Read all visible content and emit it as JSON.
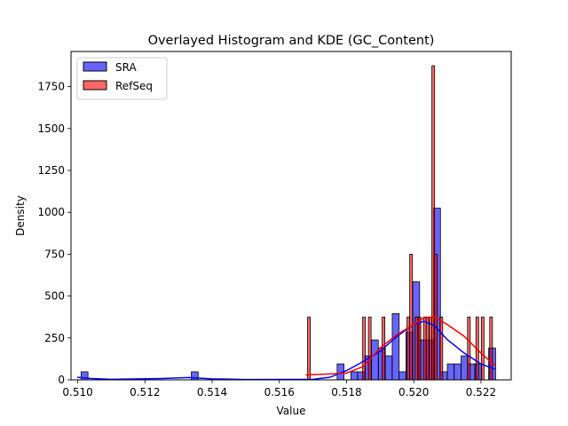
{
  "chart_data": {
    "type": "histogram",
    "title": "Overlayed Histogram and KDE (GC_Content)",
    "xlabel": "Value",
    "ylabel": "Density",
    "xlim": [
      0.5098,
      0.5229
    ],
    "ylim": [
      0,
      1960
    ],
    "xticks": [
      0.51,
      0.512,
      0.514,
      0.516,
      0.518,
      0.52,
      0.522
    ],
    "yticks": [
      0,
      250,
      500,
      750,
      1000,
      1250,
      1500,
      1750
    ],
    "legend_position": "top-left",
    "series": [
      {
        "name": "SRA",
        "color": "#0000ff",
        "fill_alpha": 0.6,
        "bin_width": 0.000205,
        "bins": [
          [
            0.5101,
            48
          ],
          [
            0.51338,
            48
          ],
          [
            0.51772,
            95
          ],
          [
            0.51813,
            48
          ],
          [
            0.51833,
            48
          ],
          [
            0.51854,
            143
          ],
          [
            0.51874,
            238
          ],
          [
            0.51895,
            190
          ],
          [
            0.51915,
            143
          ],
          [
            0.51936,
            395
          ],
          [
            0.51956,
            48
          ],
          [
            0.51977,
            285
          ],
          [
            0.51997,
            585
          ],
          [
            0.52018,
            238
          ],
          [
            0.52038,
            238
          ],
          [
            0.52059,
            1025
          ],
          [
            0.52079,
            48
          ],
          [
            0.521,
            95
          ],
          [
            0.5212,
            95
          ],
          [
            0.52141,
            143
          ],
          [
            0.52161,
            95
          ],
          [
            0.52182,
            95
          ],
          [
            0.52223,
            190
          ]
        ],
        "kde": [
          [
            0.51,
            15
          ],
          [
            0.5104,
            8
          ],
          [
            0.511,
            3
          ],
          [
            0.5125,
            8
          ],
          [
            0.5133,
            14
          ],
          [
            0.514,
            6
          ],
          [
            0.515,
            2
          ],
          [
            0.517,
            3
          ],
          [
            0.5175,
            15
          ],
          [
            0.518,
            55
          ],
          [
            0.5185,
            110
          ],
          [
            0.519,
            170
          ],
          [
            0.5195,
            260
          ],
          [
            0.52,
            330
          ],
          [
            0.5203,
            350
          ],
          [
            0.5206,
            325
          ],
          [
            0.521,
            240
          ],
          [
            0.5215,
            160
          ],
          [
            0.522,
            95
          ],
          [
            0.5224,
            65
          ]
        ]
      },
      {
        "name": "RefSeq",
        "color": "#ff0000",
        "fill_alpha": 0.6,
        "bin_width": 8.1e-05,
        "bins": [
          [
            0.51684,
            375
          ],
          [
            0.51848,
            375
          ],
          [
            0.51865,
            375
          ],
          [
            0.51906,
            375
          ],
          [
            0.5198,
            375
          ],
          [
            0.51988,
            750
          ],
          [
            0.52004,
            375
          ],
          [
            0.52013,
            375
          ],
          [
            0.52029,
            375
          ],
          [
            0.52037,
            375
          ],
          [
            0.52046,
            375
          ],
          [
            0.52054,
            1875
          ],
          [
            0.52062,
            750
          ],
          [
            0.52078,
            375
          ],
          [
            0.5216,
            375
          ],
          [
            0.52185,
            375
          ],
          [
            0.52201,
            375
          ],
          [
            0.52226,
            375
          ]
        ],
        "kde": [
          [
            0.5168,
            30
          ],
          [
            0.5175,
            35
          ],
          [
            0.518,
            40
          ],
          [
            0.5185,
            80
          ],
          [
            0.519,
            190
          ],
          [
            0.5195,
            270
          ],
          [
            0.52,
            330
          ],
          [
            0.5203,
            370
          ],
          [
            0.5206,
            375
          ],
          [
            0.521,
            330
          ],
          [
            0.5215,
            260
          ],
          [
            0.522,
            160
          ],
          [
            0.5224,
            90
          ]
        ]
      }
    ]
  }
}
